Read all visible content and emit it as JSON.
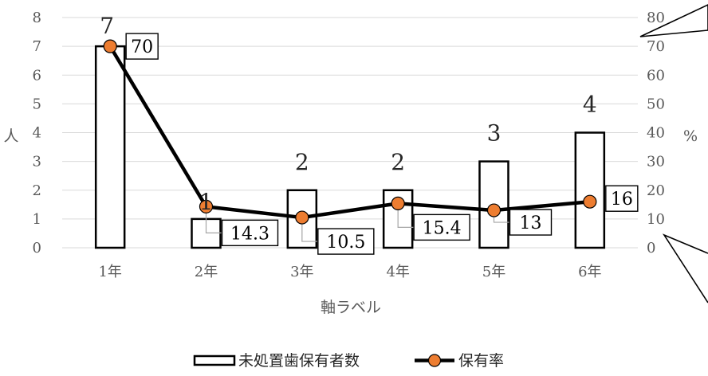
{
  "chart_data": {
    "type": "bar+line",
    "categories": [
      "1年",
      "2年",
      "3年",
      "4年",
      "5年",
      "6年"
    ],
    "xlabel": "軸ラベル",
    "ylabel_left": "人",
    "ylabel_right": "%",
    "ylim_left": [
      0,
      8
    ],
    "yticks_left": [
      "0",
      "1",
      "2",
      "3",
      "4",
      "5",
      "6",
      "7",
      "8"
    ],
    "ylim_right": [
      0,
      80
    ],
    "yticks_right": [
      "0",
      "10",
      "20",
      "30",
      "40",
      "50",
      "60",
      "70",
      "80"
    ],
    "grid": true,
    "legend_position": "bottom",
    "series": [
      {
        "name": "未処置歯保有者数",
        "type": "bar",
        "axis": "left",
        "values": [
          7,
          1,
          2,
          2,
          3,
          4
        ],
        "labels": [
          "7",
          "1",
          "2",
          "2",
          "3",
          "4"
        ],
        "fill": "#ffffff",
        "stroke": "#000000"
      },
      {
        "name": "保有率",
        "type": "line",
        "axis": "right",
        "values": [
          70,
          14.3,
          10.5,
          15.4,
          13,
          16
        ],
        "labels": [
          "70",
          "14.3",
          "10.5",
          "15.4",
          "13",
          "16"
        ],
        "line_color": "#000000",
        "marker_color": "#ed7d31"
      }
    ]
  }
}
